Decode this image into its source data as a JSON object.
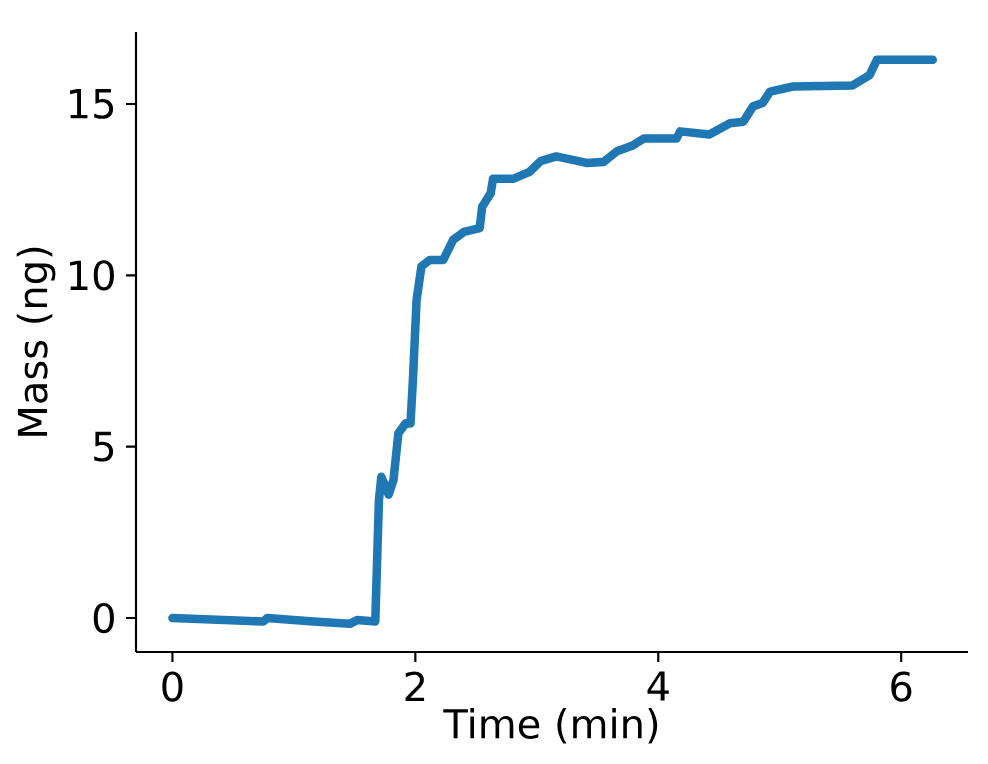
{
  "chart_data": {
    "type": "line",
    "xlabel": "Time (min)",
    "ylabel": "Mass (ng)",
    "xlim": [
      -0.3,
      6.55
    ],
    "ylim": [
      -0.99,
      17.1
    ],
    "xticks": [
      0,
      2,
      4,
      6
    ],
    "yticks": [
      0,
      5,
      10,
      15
    ],
    "grid": false,
    "series": [
      {
        "color": "#1f77b4",
        "x": [
          0,
          0.75,
          0.78,
          1.16,
          1.46,
          1.52,
          1.67,
          1.7,
          1.72,
          1.78,
          1.82,
          1.86,
          1.92,
          1.96,
          1.98,
          2.01,
          2.05,
          2.12,
          2.23,
          2.31,
          2.4,
          2.53,
          2.55,
          2.62,
          2.64,
          2.81,
          2.94,
          3.03,
          3.16,
          3.41,
          3.55,
          3.66,
          3.79,
          3.88,
          4.15,
          4.18,
          4.42,
          4.59,
          4.7,
          4.78,
          4.86,
          4.92,
          5.11,
          5.6,
          5.74,
          5.8,
          6.26
        ],
        "values": [
          0,
          -0.1,
          0.0,
          -0.1,
          -0.17,
          -0.06,
          -0.1,
          3.44,
          4.12,
          3.6,
          4.03,
          5.39,
          5.68,
          5.68,
          6.95,
          9.28,
          10.26,
          10.45,
          10.45,
          11.03,
          11.27,
          11.38,
          12.0,
          12.39,
          12.82,
          12.82,
          13.02,
          13.33,
          13.47,
          13.28,
          13.31,
          13.62,
          13.79,
          13.99,
          13.99,
          14.2,
          14.11,
          14.44,
          14.48,
          14.93,
          15.03,
          15.36,
          15.51,
          15.54,
          15.84,
          16.29,
          16.29
        ]
      }
    ]
  }
}
